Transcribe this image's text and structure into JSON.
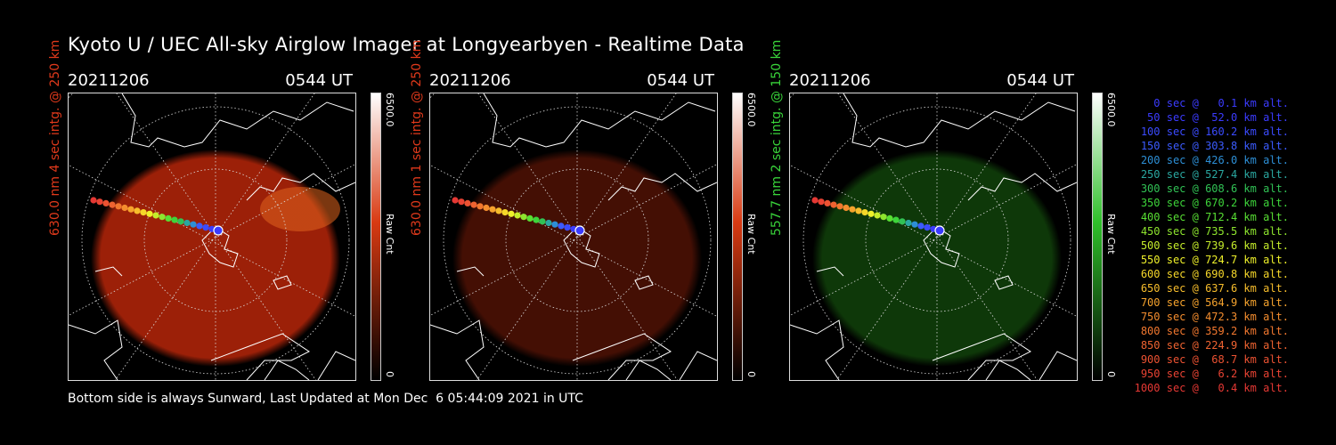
{
  "title": "Kyoto U / UEC All-sky Airglow Imager at Longyearbyen - Realtime Data",
  "footer": "Bottom side is always Sunward, Last Updated at Mon Dec  6 05:44:09 2021 in UTC",
  "panels": [
    {
      "date": "20211206",
      "time": "0544 UT",
      "ylabel": "630.0 nm 4 sec intg. @ 250 km",
      "ylabel_color": "#e0391b",
      "cbar_max": "6500.0",
      "cbar_min": "0",
      "cbar_label": "Raw Cnt",
      "glow": "#b8260a",
      "glow_opacity": 0.85
    },
    {
      "date": "20211206",
      "time": "0544 UT",
      "ylabel": "630.0 nm 1 sec intg. @ 250 km",
      "ylabel_color": "#e0391b",
      "cbar_max": "6500.0",
      "cbar_min": "0",
      "cbar_label": "Raw Cnt",
      "glow": "#5a1406",
      "glow_opacity": 0.75
    },
    {
      "date": "20211206",
      "time": "0544 UT",
      "ylabel": "557.7 nm 2 sec intg. @ 150 km",
      "ylabel_color": "#39d43a",
      "cbar_max": "6500.0",
      "cbar_min": "0",
      "cbar_label": "Raw Cnt",
      "glow": "#134a0c",
      "glow_opacity": 0.75
    }
  ],
  "legend": [
    {
      "text": "0 sec @   0.1 km alt.",
      "color": "#3b3bff"
    },
    {
      "text": "50 sec @  52.0 km alt.",
      "color": "#3b3bff"
    },
    {
      "text": "100 sec @ 160.2 km alt.",
      "color": "#3b4bff"
    },
    {
      "text": "150 sec @ 303.8 km alt.",
      "color": "#3b5bff"
    },
    {
      "text": "200 sec @ 426.0 km alt.",
      "color": "#2d8fd6"
    },
    {
      "text": "250 sec @ 527.4 km alt.",
      "color": "#2aa7a0"
    },
    {
      "text": "300 sec @ 608.6 km alt.",
      "color": "#31c255"
    },
    {
      "text": "350 sec @ 670.2 km alt.",
      "color": "#3dd43a"
    },
    {
      "text": "400 sec @ 712.4 km alt.",
      "color": "#58df33"
    },
    {
      "text": "450 sec @ 735.5 km alt.",
      "color": "#8ee52e"
    },
    {
      "text": "500 sec @ 739.6 km alt.",
      "color": "#c5ec2b"
    },
    {
      "text": "550 sec @ 724.7 km alt.",
      "color": "#eef02a"
    },
    {
      "text": "600 sec @ 690.8 km alt.",
      "color": "#f6d72a"
    },
    {
      "text": "650 sec @ 637.6 km alt.",
      "color": "#f7bd2c"
    },
    {
      "text": "700 sec @ 564.9 km alt.",
      "color": "#f6a32d"
    },
    {
      "text": "750 sec @ 472.3 km alt.",
      "color": "#f48d2e"
    },
    {
      "text": "800 sec @ 359.2 km alt.",
      "color": "#f2782f"
    },
    {
      "text": "850 sec @ 224.9 km alt.",
      "color": "#ef6331"
    },
    {
      "text": "900 sec @  68.7 km alt.",
      "color": "#ec5232"
    },
    {
      "text": "950 sec @   6.2 km alt.",
      "color": "#e94333"
    },
    {
      "text": "1000 sec @   0.4 km alt.",
      "color": "#e53834"
    }
  ]
}
